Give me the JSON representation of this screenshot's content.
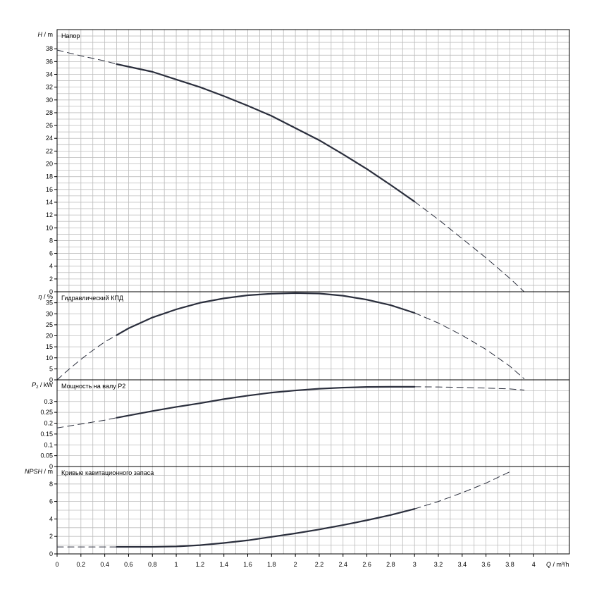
{
  "chart_data": {
    "type": "line",
    "x_axis": {
      "label_var": "Q",
      "label_unit": "/ m³/h",
      "range": [
        0,
        4.3
      ],
      "ticks": [
        "0",
        "0.2",
        "0.4",
        "0.6",
        "0.8",
        "1",
        "1.2",
        "1.4",
        "1.6",
        "1.8",
        "2",
        "2.2",
        "2.4",
        "2.6",
        "2.8",
        "3",
        "3.2",
        "3.4",
        "3.6",
        "3.8",
        "4"
      ],
      "grid_step": 0.1
    },
    "colors": {
      "curve": "#2b2f3d",
      "grid": "#bdbdbd",
      "frame": "#000000"
    },
    "panels": [
      {
        "id": "head",
        "title": "Напор",
        "ylabel_var": "H",
        "ylabel_unit": "/ m",
        "ylim": [
          0,
          41
        ],
        "yticks": [
          "0",
          "2",
          "4",
          "6",
          "8",
          "10",
          "12",
          "14",
          "16",
          "18",
          "20",
          "22",
          "24",
          "26",
          "28",
          "30",
          "32",
          "34",
          "36",
          "38"
        ],
        "ygrid_step": 1,
        "series": [
          {
            "style": "dashed",
            "x": [
              0,
              0.2,
              0.4,
              0.5
            ],
            "y": [
              37.8,
              36.9,
              36.1,
              35.6
            ]
          },
          {
            "style": "solid",
            "x": [
              0.5,
              0.8,
              1.0,
              1.2,
              1.4,
              1.6,
              1.8,
              2.0,
              2.2,
              2.4,
              2.6,
              2.8,
              3.0
            ],
            "y": [
              35.6,
              34.4,
              33.2,
              32.0,
              30.6,
              29.1,
              27.5,
              25.6,
              23.7,
              21.5,
              19.2,
              16.7,
              14.1
            ]
          },
          {
            "style": "dashed",
            "x": [
              3.0,
              3.2,
              3.4,
              3.6,
              3.8,
              3.92
            ],
            "y": [
              14.1,
              11.3,
              8.3,
              5.3,
              2.1,
              0
            ]
          }
        ]
      },
      {
        "id": "efficiency",
        "title": "Гидравлический КПД",
        "ylabel_var": "η",
        "ylabel_unit": "/ %",
        "ylim": [
          0,
          40
        ],
        "yticks": [
          "0",
          "5",
          "10",
          "15",
          "20",
          "25",
          "30",
          "35"
        ],
        "ygrid_step": 5,
        "series": [
          {
            "style": "dashed",
            "x": [
              0,
              0.1,
              0.2,
              0.3,
              0.4,
              0.5
            ],
            "y": [
              0,
              4.8,
              9.3,
              13.4,
              17.2,
              20.3
            ]
          },
          {
            "style": "solid",
            "x": [
              0.5,
              0.6,
              0.8,
              1.0,
              1.2,
              1.4,
              1.6,
              1.8,
              2.0,
              2.2,
              2.4,
              2.6,
              2.8,
              3.0
            ],
            "y": [
              20.3,
              23.4,
              28.3,
              32.0,
              35.0,
              37.0,
              38.4,
              39.1,
              39.4,
              39.2,
              38.2,
              36.4,
              33.9,
              30.4
            ]
          },
          {
            "style": "dashed",
            "x": [
              3.0,
              3.2,
              3.4,
              3.6,
              3.8,
              3.92
            ],
            "y": [
              30.4,
              25.8,
              20.2,
              13.8,
              6.2,
              0.5
            ]
          }
        ]
      },
      {
        "id": "power",
        "title": "Мощность на валу P2",
        "ylabel_var": "P",
        "ylabel_sub": "2",
        "ylabel_unit": "/ kW",
        "ylim": [
          0,
          0.4
        ],
        "yticks": [
          "0",
          "0.05",
          "0.1",
          "0.15",
          "0.2",
          "0.25",
          "0.3"
        ],
        "ygrid_step": 0.05,
        "series": [
          {
            "style": "dashed",
            "x": [
              0,
              0.2,
              0.4,
              0.5
            ],
            "y": [
              0.178,
              0.196,
              0.214,
              0.225
            ]
          },
          {
            "style": "solid",
            "x": [
              0.5,
              0.8,
              1.0,
              1.2,
              1.4,
              1.6,
              1.8,
              2.0,
              2.2,
              2.4,
              2.6,
              2.8,
              3.0
            ],
            "y": [
              0.225,
              0.256,
              0.275,
              0.292,
              0.311,
              0.327,
              0.341,
              0.351,
              0.359,
              0.364,
              0.367,
              0.368,
              0.368
            ]
          },
          {
            "style": "dashed",
            "x": [
              3.0,
              3.2,
              3.4,
              3.6,
              3.8,
              3.92
            ],
            "y": [
              0.368,
              0.367,
              0.365,
              0.362,
              0.358,
              0.353
            ]
          }
        ]
      },
      {
        "id": "npsh",
        "title": "Кривые кавитационного запаса",
        "ylabel_var": "NPSH",
        "ylabel_unit": "/ m",
        "ylim": [
          0,
          10
        ],
        "yticks": [
          "0",
          "2",
          "4",
          "6",
          "8"
        ],
        "ygrid_step": 1,
        "series": [
          {
            "style": "dashed",
            "x": [
              0,
              0.2,
              0.4,
              0.5
            ],
            "y": [
              0.8,
              0.8,
              0.8,
              0.8
            ]
          },
          {
            "style": "solid",
            "x": [
              0.5,
              0.8,
              1.0,
              1.2,
              1.4,
              1.6,
              1.8,
              2.0,
              2.2,
              2.4,
              2.6,
              2.8,
              3.0
            ],
            "y": [
              0.8,
              0.8,
              0.85,
              1.0,
              1.25,
              1.55,
              1.95,
              2.35,
              2.8,
              3.3,
              3.85,
              4.45,
              5.15
            ]
          },
          {
            "style": "dashed",
            "x": [
              3.0,
              3.2,
              3.4,
              3.6,
              3.8
            ],
            "y": [
              5.15,
              6.0,
              7.0,
              8.1,
              9.4
            ]
          }
        ]
      }
    ]
  }
}
